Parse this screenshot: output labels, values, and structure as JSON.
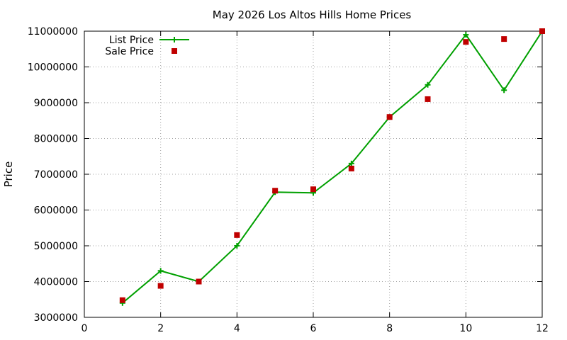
{
  "colors": {
    "list": "#00a000",
    "sale": "#c00000"
  },
  "chart_data": {
    "type": "line",
    "title": "May 2026 Los Altos Hills Home Prices",
    "xlabel": "",
    "ylabel": "Price",
    "xlim": [
      0,
      12
    ],
    "ylim": [
      3000000,
      11000000
    ],
    "xticks": [
      0,
      2,
      4,
      6,
      8,
      10,
      12
    ],
    "yticks": [
      3000000,
      4000000,
      5000000,
      6000000,
      7000000,
      8000000,
      9000000,
      10000000,
      11000000
    ],
    "grid": true,
    "legend_position": "top-left",
    "series": [
      {
        "name": "List Price",
        "style": "line-with-plus-markers",
        "x": [
          1,
          2,
          3,
          4,
          5,
          6,
          7,
          8,
          9,
          10,
          11,
          12
        ],
        "y": [
          3400000,
          4300000,
          4000000,
          5000000,
          6500000,
          6480000,
          7300000,
          8600000,
          9500000,
          10900000,
          9350000,
          11000000
        ]
      },
      {
        "name": "Sale Price",
        "style": "square-markers",
        "x": [
          1,
          2,
          3,
          4,
          5,
          6,
          7,
          8,
          9,
          10,
          11,
          12
        ],
        "y": [
          3480000,
          3880000,
          4000000,
          5300000,
          6540000,
          6580000,
          7160000,
          8600000,
          9100000,
          10700000,
          10780000,
          11000000
        ]
      }
    ]
  }
}
